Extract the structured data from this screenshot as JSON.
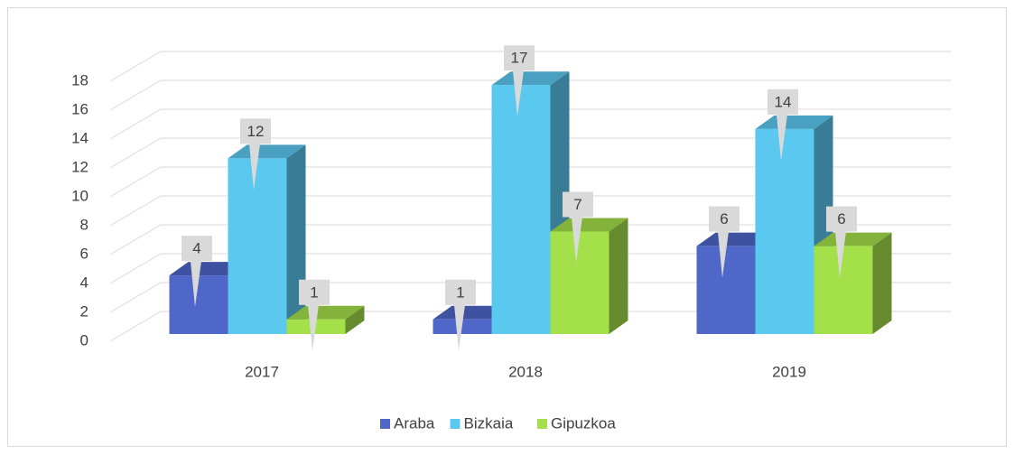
{
  "chart_data": {
    "type": "bar3d",
    "categories": [
      "2017",
      "2018",
      "2019"
    ],
    "series": [
      {
        "name": "Araba",
        "color": "#4f67c9",
        "values": [
          4,
          1,
          6
        ]
      },
      {
        "name": "Bizkaia",
        "color": "#5bc8f0",
        "values": [
          12,
          17,
          14
        ]
      },
      {
        "name": "Gipuzkoa",
        "color": "#a4e04a",
        "values": [
          1,
          7,
          6
        ]
      }
    ],
    "ylim": [
      0,
      18
    ],
    "yticks": [
      0,
      2,
      4,
      6,
      8,
      10,
      12,
      14,
      16,
      18
    ],
    "grid": true,
    "legend": "bottom"
  }
}
